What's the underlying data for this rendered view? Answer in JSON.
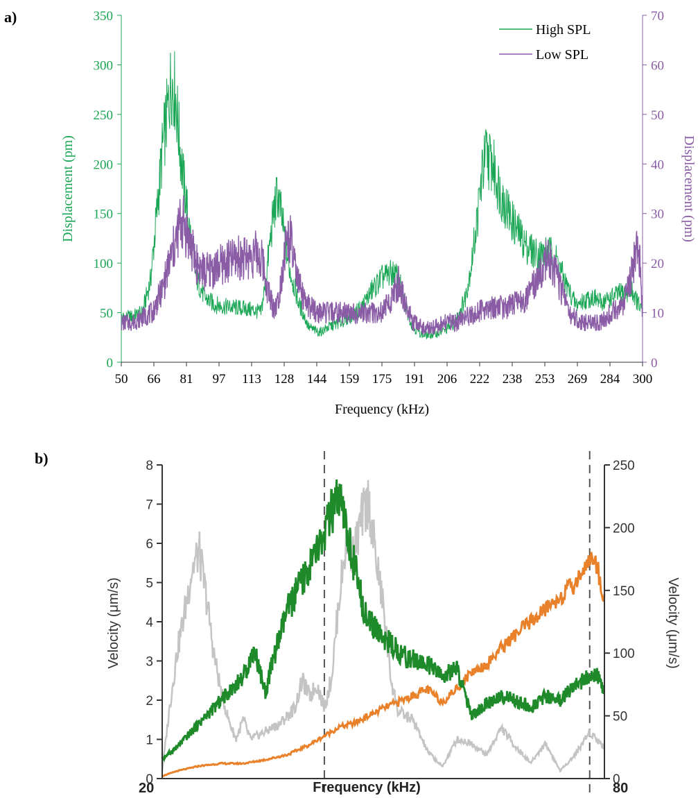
{
  "chart_data": [
    {
      "panel_label": "a)",
      "type": "line",
      "xlabel": "Frequency (kHz)",
      "ylabel_left": "Displacement (pm)",
      "ylabel_right": "Displacement (pm)",
      "xlim": [
        50,
        300
      ],
      "ylim_left": [
        0,
        350
      ],
      "ylim_right": [
        0,
        70
      ],
      "x_ticks": [
        "50",
        "66",
        "81",
        "97",
        "113",
        "128",
        "144",
        "159",
        "175",
        "191",
        "206",
        "222",
        "238",
        "253",
        "269",
        "284",
        "300"
      ],
      "y_ticks_left": [
        "0",
        "50",
        "100",
        "150",
        "200",
        "250",
        "300",
        "350"
      ],
      "y_ticks_right": [
        "0",
        "10",
        "20",
        "30",
        "40",
        "50",
        "60",
        "70"
      ],
      "legend_position": "top-right",
      "grid": false,
      "series": [
        {
          "name": "High SPL",
          "axis": "left",
          "color": "#1aa655",
          "x": [
            50,
            55,
            60,
            64,
            67,
            70,
            72,
            74,
            76,
            78,
            80,
            83,
            86,
            90,
            95,
            100,
            105,
            110,
            114,
            117,
            119,
            121,
            123,
            125,
            127,
            130,
            135,
            140,
            145,
            150,
            155,
            160,
            165,
            170,
            175,
            180,
            183,
            186,
            190,
            195,
            200,
            205,
            210,
            215,
            218,
            221,
            223,
            225,
            228,
            232,
            238,
            244,
            250,
            255,
            259,
            263,
            268,
            272,
            276,
            280,
            285,
            290,
            295,
            300
          ],
          "y": [
            45,
            46,
            50,
            82,
            150,
            220,
            250,
            285,
            270,
            220,
            180,
            130,
            85,
            65,
            58,
            56,
            55,
            54,
            52,
            50,
            78,
            115,
            150,
            170,
            145,
            100,
            60,
            35,
            30,
            36,
            40,
            46,
            55,
            72,
            85,
            90,
            85,
            58,
            35,
            27,
            28,
            32,
            40,
            65,
            100,
            150,
            190,
            210,
            200,
            170,
            140,
            118,
            108,
            112,
            103,
            80,
            58,
            62,
            66,
            60,
            65,
            70,
            72,
            50
          ]
        },
        {
          "name": "Low SPL",
          "axis": "right",
          "color": "#8a5ca6",
          "x": [
            50,
            55,
            60,
            65,
            70,
            73,
            76,
            78,
            80,
            83,
            86,
            90,
            95,
            100,
            105,
            110,
            115,
            118,
            120,
            123,
            125,
            127,
            129,
            131,
            134,
            138,
            144,
            150,
            160,
            170,
            175,
            180,
            183,
            186,
            190,
            195,
            200,
            205,
            210,
            215,
            220,
            225,
            230,
            235,
            240,
            245,
            250,
            253,
            256,
            260,
            265,
            270,
            275,
            280,
            285,
            290,
            294,
            296,
            298,
            300
          ],
          "y": [
            8,
            8,
            9,
            10,
            15,
            20,
            24,
            28,
            28,
            24,
            20,
            18,
            19,
            20,
            21,
            21,
            22,
            20,
            15,
            11,
            12,
            18,
            24,
            25,
            17,
            12,
            10,
            10,
            10,
            10,
            10,
            13,
            16,
            12,
            8,
            7,
            7,
            8,
            8,
            9,
            10,
            11,
            11,
            11,
            12,
            13,
            17,
            21,
            20,
            16,
            10,
            8,
            8,
            8,
            10,
            11,
            16,
            21,
            25,
            10
          ]
        }
      ]
    },
    {
      "panel_label": "b)",
      "type": "line",
      "xlabel": "Frequency (kHz)",
      "ylabel_left": "Velocity (μm/s)",
      "ylabel_right": "Velocity (μm/s)",
      "xlim": [
        20,
        80
      ],
      "ylim_left": [
        0,
        8
      ],
      "ylim_right": [
        0,
        250
      ],
      "x_ticks": [
        "20",
        "80"
      ],
      "y_ticks_left": [
        "0",
        "1",
        "2",
        "3",
        "4",
        "5",
        "6",
        "7",
        "8"
      ],
      "y_ticks_right": [
        "0",
        "50",
        "100",
        "150",
        "200",
        "250"
      ],
      "vlines": [
        42,
        78
      ],
      "grid": false,
      "series": [
        {
          "axis": "left",
          "color": "#1e8a2a",
          "x": [
            20,
            22,
            25,
            28,
            31,
            32.5,
            34,
            35,
            37,
            40,
            42,
            43,
            44,
            45,
            46,
            47,
            48,
            50,
            53,
            56,
            58,
            60,
            61,
            62,
            64,
            66,
            68,
            70,
            72,
            74,
            76,
            78,
            79,
            80
          ],
          "y": [
            0.5,
            0.8,
            1.4,
            2.0,
            2.6,
            3.3,
            2.2,
            3.0,
            4.3,
            5.4,
            6.2,
            6.8,
            7.1,
            6.3,
            5.5,
            4.6,
            4.0,
            3.6,
            3.1,
            2.9,
            2.6,
            2.8,
            2.2,
            1.6,
            1.9,
            2.1,
            2.0,
            1.8,
            2.1,
            2.0,
            2.4,
            2.6,
            2.6,
            2.2
          ]
        },
        {
          "axis": "right",
          "color": "#e8812a",
          "x": [
            20,
            22,
            25,
            28,
            31,
            34,
            37,
            40,
            42,
            44,
            46,
            48,
            50,
            52,
            54,
            56,
            58,
            60,
            62,
            64,
            66,
            68,
            70,
            72,
            74,
            76,
            78,
            79,
            80
          ],
          "y": [
            2,
            6,
            10,
            12,
            12,
            15,
            19,
            27,
            34,
            41,
            44,
            50,
            56,
            61,
            66,
            71,
            61,
            72,
            85,
            91,
            104,
            115,
            125,
            135,
            145,
            155,
            176,
            170,
            142
          ]
        },
        {
          "axis": "left",
          "color": "#c4c4c4",
          "x": [
            20,
            21,
            22,
            23,
            24,
            25,
            26,
            27,
            28,
            29,
            30,
            31,
            32,
            34,
            36,
            38,
            39,
            40,
            41,
            42,
            43,
            44,
            45,
            46,
            47,
            48,
            49,
            50,
            51,
            52,
            54,
            56,
            58,
            60,
            62,
            64,
            66,
            68,
            70,
            72,
            74,
            76,
            78,
            80
          ],
          "y": [
            0.2,
            1.8,
            3.2,
            4.2,
            5.3,
            5.8,
            4.6,
            3.2,
            2.2,
            1.5,
            1.0,
            1.5,
            1.0,
            1.2,
            1.4,
            1.8,
            2.5,
            2.1,
            2.4,
            1.8,
            2.6,
            4.6,
            6.1,
            5.7,
            6.6,
            7.1,
            5.6,
            4.4,
            2.6,
            1.7,
            1.5,
            0.7,
            0.3,
            1.0,
            0.9,
            0.6,
            1.3,
            0.8,
            0.4,
            0.9,
            0.2,
            0.6,
            1.2,
            0.8
          ]
        }
      ]
    }
  ]
}
